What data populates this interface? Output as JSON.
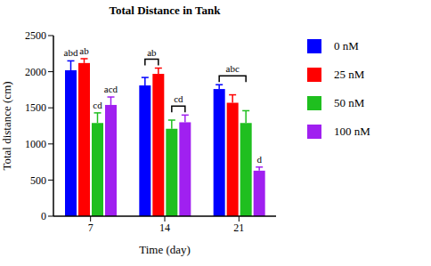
{
  "chart_data": {
    "type": "bar",
    "title": "Total Distance in Tank",
    "x_label": "Time (day)",
    "y_label": "Total distance (cm)",
    "categories": [
      "7",
      "14",
      "21"
    ],
    "series": [
      {
        "name": "0 nM",
        "color": "#0000ff",
        "values": [
          2020,
          1810,
          1760
        ],
        "errors": [
          130,
          110,
          60
        ]
      },
      {
        "name": "25 nM",
        "color": "#ff0000",
        "values": [
          2120,
          1970,
          1570
        ],
        "errors": [
          60,
          80,
          110
        ]
      },
      {
        "name": "50 nM",
        "color": "#1fbf1f",
        "values": [
          1290,
          1210,
          1290
        ],
        "errors": [
          140,
          120,
          170
        ]
      },
      {
        "name": "100 nM",
        "color": "#a020f0",
        "values": [
          1540,
          1300,
          630
        ],
        "errors": [
          110,
          100,
          50
        ]
      }
    ],
    "annotations": [
      {
        "text": "abd",
        "category": "7",
        "series": [
          "0 nM"
        ]
      },
      {
        "text": "ab",
        "category": "7",
        "series": [
          "25 nM"
        ]
      },
      {
        "text": "cd",
        "category": "7",
        "series": [
          "50 nM"
        ]
      },
      {
        "text": "acd",
        "category": "7",
        "series": [
          "100 nM"
        ]
      },
      {
        "text": "ab",
        "category": "14",
        "series": [
          "0 nM",
          "25 nM"
        ]
      },
      {
        "text": "cd",
        "category": "14",
        "series": [
          "50 nM",
          "100 nM"
        ]
      },
      {
        "text": "abc",
        "category": "21",
        "series": [
          "0 nM",
          "25 nM",
          "50 nM"
        ]
      },
      {
        "text": "d",
        "category": "21",
        "series": [
          "100 nM"
        ]
      }
    ],
    "ylim": [
      0,
      2500
    ],
    "yticks": [
      0,
      500,
      1000,
      1500,
      2000,
      2500
    ],
    "grid": false,
    "legend": "right"
  }
}
